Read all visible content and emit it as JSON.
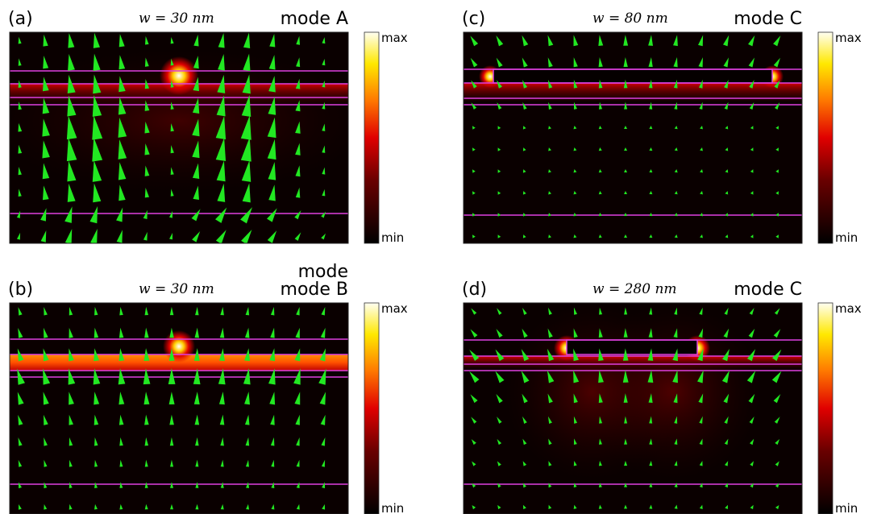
{
  "panels": [
    {
      "label": "(a)",
      "width": "w = 30 nm",
      "mode": [
        "mode A"
      ],
      "max": "max",
      "min": "min"
    },
    {
      "label": "(b)",
      "width": "w = 30 nm",
      "mode": [
        "mode",
        "mode B"
      ],
      "max": "max",
      "min": "min"
    },
    {
      "label": "(c)",
      "width": "w = 80 nm",
      "mode": [
        "mode C"
      ],
      "max": "max",
      "min": "min"
    },
    {
      "label": "(d)",
      "width": "w = 280 nm",
      "mode": [
        "mode C"
      ],
      "max": "max",
      "min": "min"
    }
  ]
}
